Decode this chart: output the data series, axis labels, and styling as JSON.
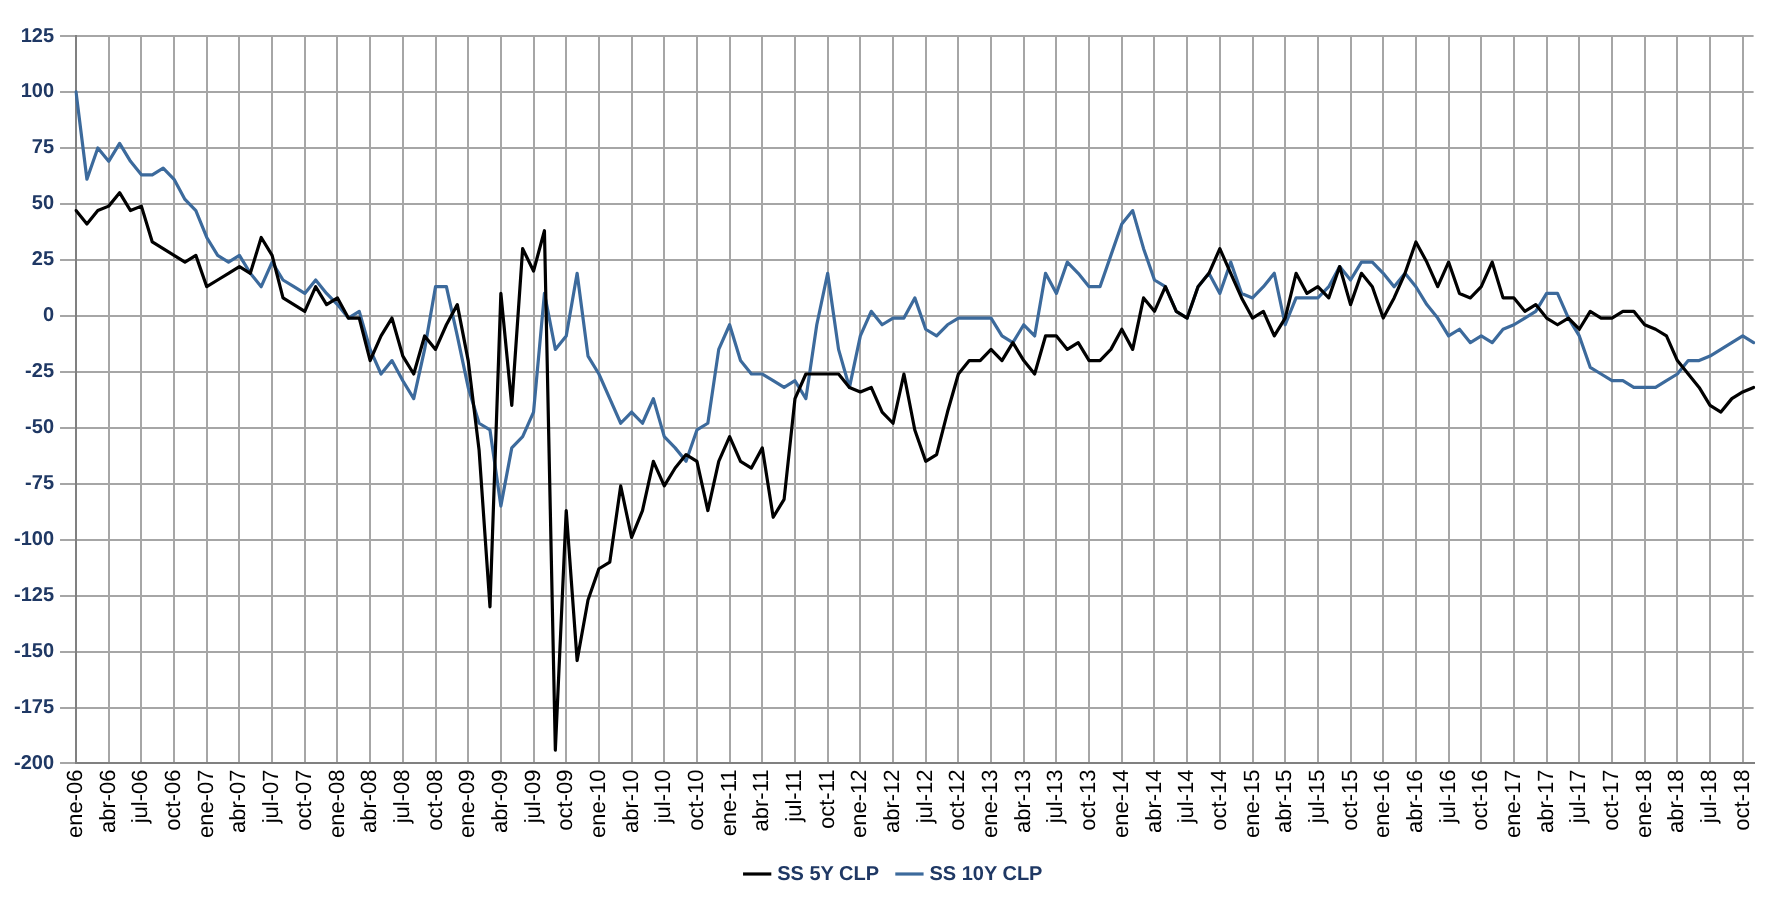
{
  "chart_data": {
    "type": "line",
    "categories": [
      "ene-06",
      null,
      null,
      "abr-06",
      null,
      null,
      "jul-06",
      null,
      null,
      "oct-06",
      null,
      null,
      "ene-07",
      null,
      null,
      "abr-07",
      null,
      null,
      "jul-07",
      null,
      null,
      "oct-07",
      null,
      null,
      "ene-08",
      null,
      null,
      "abr-08",
      null,
      null,
      "jul-08",
      null,
      null,
      "oct-08",
      null,
      null,
      "ene-09",
      null,
      null,
      "abr-09",
      null,
      null,
      "jul-09",
      null,
      null,
      "oct-09",
      null,
      null,
      "ene-10",
      null,
      null,
      "abr-10",
      null,
      null,
      "jul-10",
      null,
      null,
      "oct-10",
      null,
      null,
      "ene-11",
      null,
      null,
      "abr-11",
      null,
      null,
      "jul-11",
      null,
      null,
      "oct-11",
      null,
      null,
      "ene-12",
      null,
      null,
      "abr-12",
      null,
      null,
      "jul-12",
      null,
      null,
      "oct-12",
      null,
      null,
      "ene-13",
      null,
      null,
      "abr-13",
      null,
      null,
      "jul-13",
      null,
      null,
      "oct-13",
      null,
      null,
      "ene-14",
      null,
      null,
      "abr-14",
      null,
      null,
      "jul-14",
      null,
      null,
      "oct-14",
      null,
      null,
      "ene-15",
      null,
      null,
      "abr-15",
      null,
      null,
      "jul-15",
      null,
      null,
      "oct-15",
      null,
      null,
      "ene-16",
      null,
      null,
      "abr-16",
      null,
      null,
      "jul-16",
      null,
      null,
      "oct-16",
      null,
      null,
      "ene-17",
      null,
      null,
      "abr-17",
      null,
      null,
      "jul-17",
      null,
      null,
      "oct-17",
      null,
      null,
      "ene-18",
      null,
      null,
      "abr-18",
      null,
      null,
      "jul-18",
      null,
      null,
      "oct-18",
      null
    ],
    "series": [
      {
        "name": "SS 5Y CLP",
        "color": "#000000",
        "values": [
          47,
          41,
          47,
          49,
          55,
          47,
          49,
          33,
          30,
          27,
          24,
          27,
          13,
          16,
          19,
          22,
          19,
          35,
          27,
          8,
          5,
          2,
          13,
          5,
          8,
          -1,
          -1,
          -20,
          -9,
          -1,
          -18,
          -26,
          -9,
          -15,
          -4,
          5,
          -20,
          -60,
          -130,
          10,
          -40,
          30,
          20,
          38,
          -194,
          -87,
          -154,
          -127,
          -113,
          -110,
          -76,
          -99,
          -87,
          -65,
          -76,
          -68,
          -62,
          -65,
          -87,
          -65,
          -54,
          -65,
          -68,
          -59,
          -90,
          -82,
          -37,
          -26,
          -26,
          -26,
          -26,
          -32,
          -34,
          -32,
          -43,
          -48,
          -26,
          -51,
          -65,
          -62,
          -43,
          -26,
          -20,
          -20,
          -15,
          -20,
          -12,
          -20,
          -26,
          -9,
          -9,
          -15,
          -12,
          -20,
          -20,
          -15,
          -6,
          -15,
          8,
          2,
          13,
          2,
          -1,
          13,
          19,
          30,
          19,
          8,
          -1,
          2,
          -9,
          -1,
          19,
          10,
          13,
          8,
          22,
          5,
          19,
          13,
          -1,
          8,
          19,
          33,
          24,
          13,
          24,
          10,
          8,
          13,
          24,
          8,
          8,
          2,
          5,
          -1,
          -4,
          -1,
          -6,
          2,
          -1,
          -1,
          2,
          2,
          -4,
          -6,
          -9,
          -20,
          -26,
          -32,
          -40,
          -43,
          -37,
          -34,
          -32
        ]
      },
      {
        "name": "SS 10Y CLP",
        "color": "#3c6a9c",
        "values": [
          100,
          61,
          75,
          69,
          77,
          69,
          63,
          63,
          66,
          61,
          52,
          47,
          35,
          27,
          24,
          27,
          19,
          13,
          24,
          16,
          13,
          10,
          16,
          10,
          5,
          -1,
          2,
          -15,
          -26,
          -20,
          -29,
          -37,
          -15,
          13,
          13,
          -9,
          -32,
          -48,
          -51,
          -85,
          -59,
          -54,
          -43,
          10,
          -15,
          -9,
          19,
          -18,
          -26,
          -37,
          -48,
          -43,
          -48,
          -37,
          -54,
          -59,
          -65,
          -51,
          -48,
          -15,
          -4,
          -20,
          -26,
          -26,
          -29,
          -32,
          -29,
          -37,
          -4,
          19,
          -15,
          -32,
          -9,
          2,
          -4,
          -1,
          -1,
          8,
          -6,
          -9,
          -4,
          -1,
          -1,
          -1,
          -1,
          -9,
          -12,
          -4,
          -9,
          19,
          10,
          24,
          19,
          13,
          13,
          27,
          41,
          47,
          30,
          16,
          13,
          2,
          -1,
          13,
          19,
          10,
          24,
          10,
          8,
          13,
          19,
          -4,
          8,
          8,
          8,
          13,
          22,
          16,
          24,
          24,
          19,
          13,
          19,
          13,
          5,
          -1,
          -9,
          -6,
          -12,
          -9,
          -12,
          -6,
          -4,
          -1,
          2,
          10,
          10,
          -1,
          -9,
          -23,
          -26,
          -29,
          -29,
          -32,
          -32,
          -32,
          -29,
          -26,
          -20,
          -20,
          -18,
          -15,
          -12,
          -9,
          -12
        ]
      }
    ],
    "ylim": [
      -200,
      125
    ],
    "yticks": [
      -200,
      -175,
      -150,
      -125,
      -100,
      -75,
      -50,
      -25,
      0,
      25,
      50,
      75,
      100,
      125
    ],
    "grid": true,
    "legend": "bottom",
    "marker": "none",
    "line_style": "solid"
  }
}
